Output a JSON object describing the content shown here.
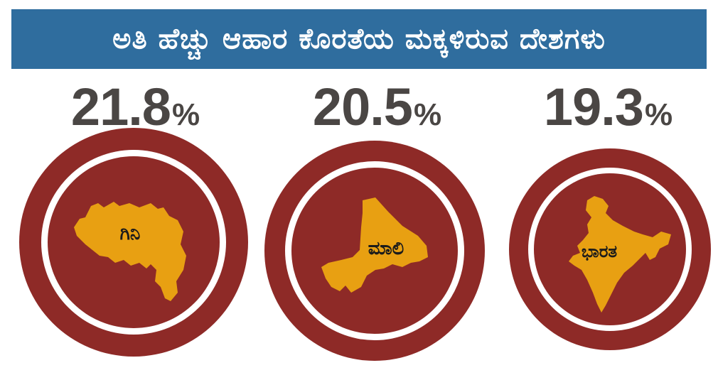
{
  "title": "ಅತಿ ಹೆಚ್ಚು ಆಹಾರ ಕೊರತೆಯ ಮಕ್ಕಳಿರುವ ದೇಶಗಳು",
  "colors": {
    "title_bar": "#2f6d9e",
    "ring": "#8e2a27",
    "map": "#e8a012",
    "value_text": "#4a4644"
  },
  "chart_data": {
    "type": "bar",
    "title": "ಅತಿ ಹೆಚ್ಚು ಆಹಾರ ಕೊರತೆಯ ಮಕ್ಕಳಿರುವ ದೇಶಗಳು",
    "categories": [
      "ಗಿನಿ",
      "ಮಾಲಿ",
      "ಭಾರತ"
    ],
    "values": [
      21.8,
      20.5,
      19.3
    ],
    "unit": "%",
    "value_labels": [
      "21.8",
      "20.5",
      "19.3"
    ],
    "grid": false
  }
}
